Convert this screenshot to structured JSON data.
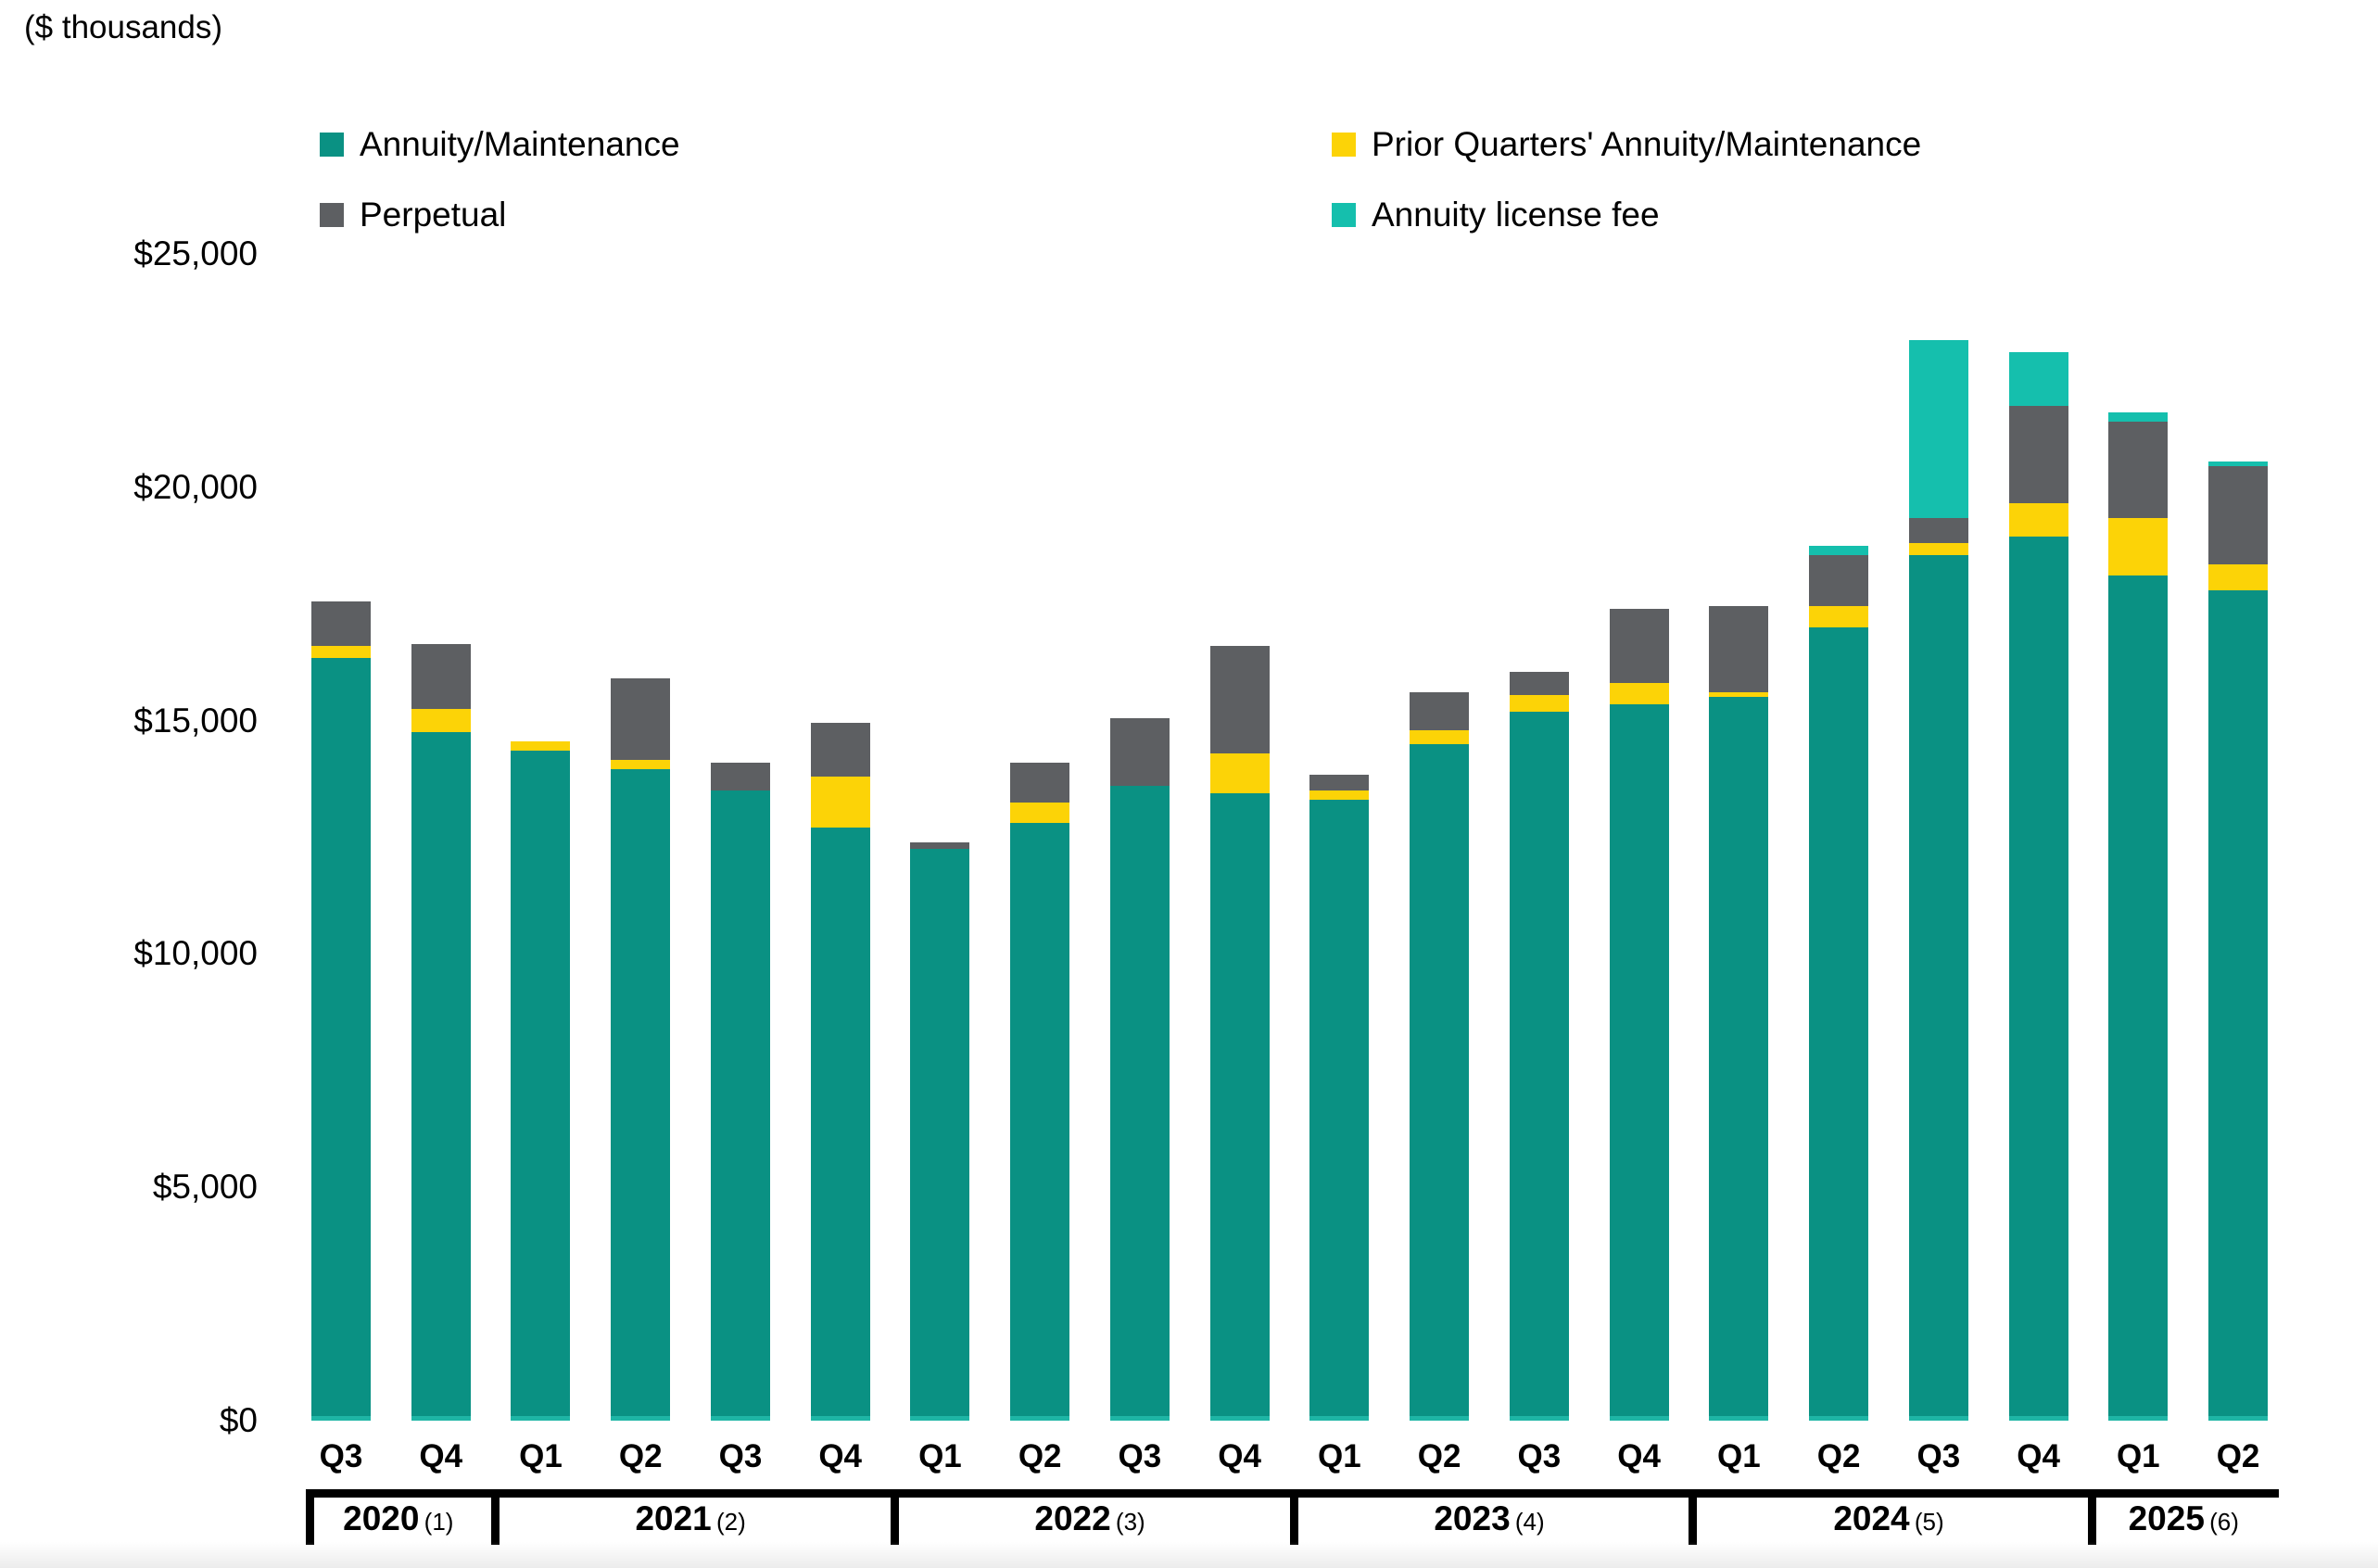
{
  "units_note": "($ thousands)",
  "y_axis": {
    "ticks": [
      {
        "label": "$25,000",
        "value": 25000
      },
      {
        "label": "$20,000",
        "value": 20000
      },
      {
        "label": "$15,000",
        "value": 15000
      },
      {
        "label": "$10,000",
        "value": 10000
      },
      {
        "label": "$5,000",
        "value": 5000
      },
      {
        "label": "$0",
        "value": 0
      }
    ]
  },
  "chart_data": {
    "type": "bar",
    "stacked": true,
    "title": "",
    "xlabel": "",
    "ylabel": "($ thousands)",
    "ylim": [
      0,
      25000
    ],
    "grid": false,
    "legend_position": "top",
    "categories": [
      "Q3",
      "Q4",
      "Q1",
      "Q2",
      "Q3",
      "Q4",
      "Q1",
      "Q2",
      "Q3",
      "Q4",
      "Q1",
      "Q2",
      "Q3",
      "Q4",
      "Q1",
      "Q2",
      "Q3",
      "Q4",
      "Q1",
      "Q2"
    ],
    "year_groups": [
      {
        "label": "2020",
        "footnote": "(1)",
        "bars": 2
      },
      {
        "label": "2021",
        "footnote": "(2)",
        "bars": 4
      },
      {
        "label": "2022",
        "footnote": "(3)",
        "bars": 4
      },
      {
        "label": "2023",
        "footnote": "(4)",
        "bars": 4
      },
      {
        "label": "2024",
        "footnote": "(5)",
        "bars": 4
      },
      {
        "label": "2025",
        "footnote": "(6)",
        "bars": 2
      }
    ],
    "series": [
      {
        "name": "Annuity/Maintenance",
        "color": "#0A9183",
        "values": [
          16350,
          14750,
          14350,
          13950,
          13500,
          12700,
          12250,
          12800,
          13600,
          13450,
          13300,
          14500,
          15200,
          15350,
          15500,
          17000,
          18550,
          18950,
          18100,
          17800
        ]
      },
      {
        "name": "Prior Quarters' Annuity/Maintenance",
        "color": "#FCD307",
        "values": [
          250,
          500,
          200,
          200,
          0,
          1100,
          0,
          450,
          0,
          850,
          200,
          300,
          350,
          450,
          100,
          450,
          250,
          700,
          1250,
          550
        ]
      },
      {
        "name": "Perpetual",
        "color": "#5D5F62",
        "values": [
          950,
          1400,
          0,
          1750,
          600,
          1150,
          150,
          850,
          1450,
          2300,
          350,
          800,
          500,
          1600,
          1850,
          1100,
          550,
          2100,
          2050,
          2100
        ]
      },
      {
        "name": "Annuity license fee",
        "color": "#15BFAD",
        "values": [
          0,
          0,
          0,
          0,
          0,
          0,
          0,
          0,
          0,
          0,
          0,
          0,
          0,
          0,
          0,
          200,
          3800,
          1150,
          200,
          100
        ]
      }
    ],
    "totals": [
      17550,
      16650,
      14550,
      15900,
      14100,
      14950,
      12400,
      14100,
      15050,
      16600,
      13850,
      15600,
      16050,
      17400,
      17450,
      18750,
      23150,
      22900,
      21600,
      20550
    ],
    "bar_base_strip_color": "#1EB5A5"
  }
}
